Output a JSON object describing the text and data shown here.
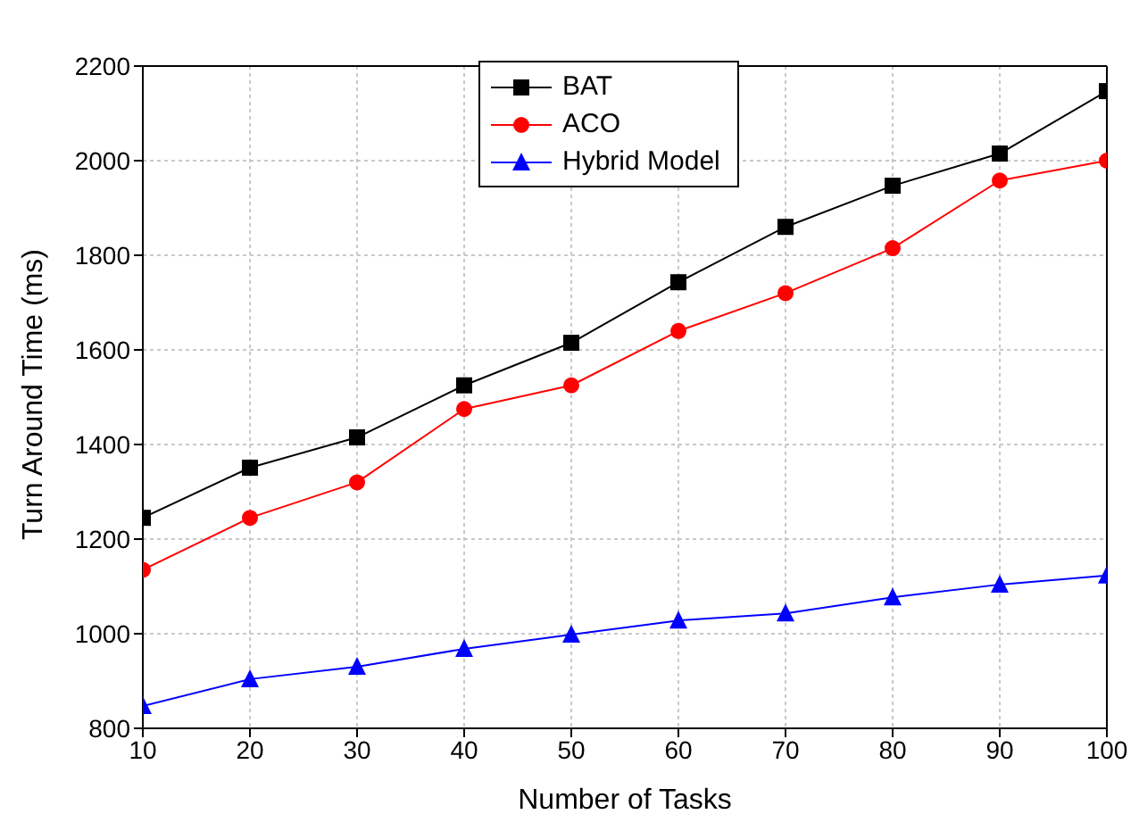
{
  "chart_data": {
    "type": "line",
    "xlabel": "Number of Tasks",
    "ylabel": "Turn Around Time (ms)",
    "x": [
      10,
      20,
      30,
      40,
      50,
      60,
      70,
      80,
      90,
      100
    ],
    "series": [
      {
        "name": "BAT",
        "color": "#000000",
        "marker": "square",
        "values": [
          1245,
          1351,
          1415,
          1525,
          1615,
          1743,
          1860,
          1947,
          2015,
          2147
        ]
      },
      {
        "name": "ACO",
        "color": "#ff0000",
        "marker": "circle",
        "values": [
          1135,
          1245,
          1320,
          1475,
          1525,
          1640,
          1720,
          1815,
          1958,
          2000
        ]
      },
      {
        "name": "Hybrid Model",
        "color": "#0000ff",
        "marker": "triangle",
        "values": [
          847,
          904,
          930,
          968,
          998,
          1028,
          1043,
          1077,
          1104,
          1123
        ]
      }
    ],
    "xlim": [
      10,
      100
    ],
    "xticks": [
      10,
      20,
      30,
      40,
      50,
      60,
      70,
      80,
      90,
      100
    ],
    "ylim": [
      800,
      2200
    ],
    "yticks": [
      800,
      1000,
      1200,
      1400,
      1600,
      1800,
      2000,
      2200
    ],
    "grid": true,
    "legend": "top",
    "line_style": "solid"
  }
}
